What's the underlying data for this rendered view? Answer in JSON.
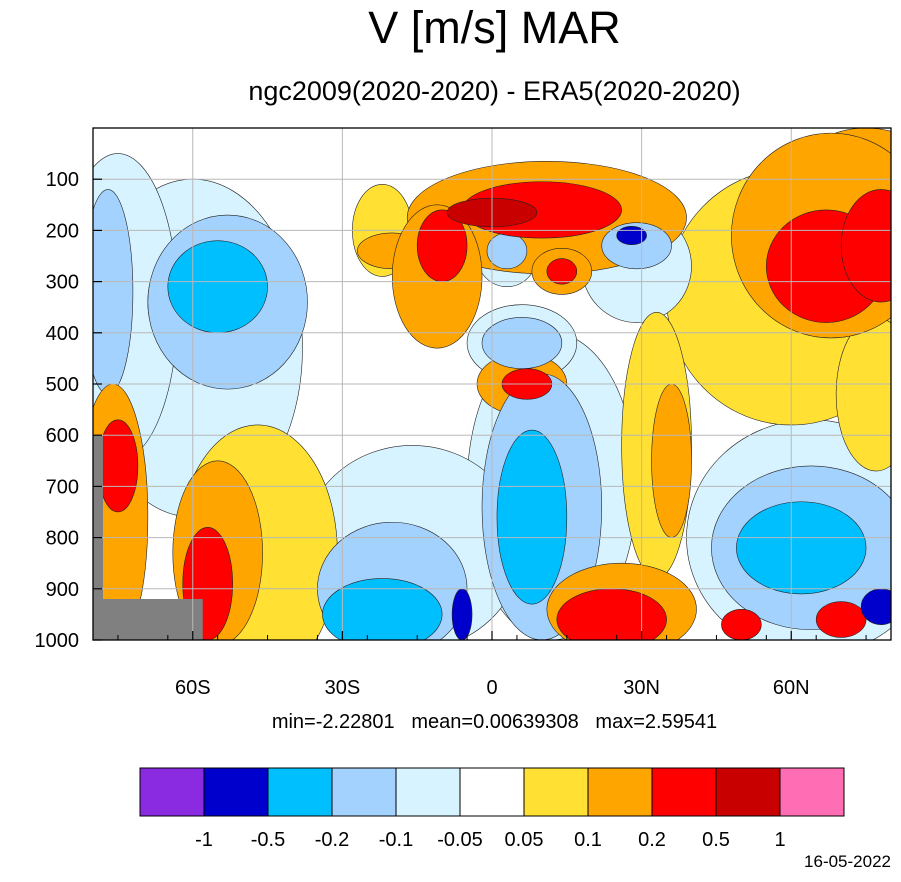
{
  "title": "V [m/s] MAR",
  "subtitle": "ngc2009(2020-2020) - ERA5(2020-2020)",
  "stats": {
    "min_label": "min=-2.22801",
    "mean_label": "mean=0.00639308",
    "max_label": "max=2.59541"
  },
  "date": "16-05-2022",
  "chart_data": {
    "type": "heatmap",
    "x_range": [
      -80,
      80
    ],
    "y_range": [
      0,
      1000
    ],
    "y_inverted": true,
    "grid": true,
    "x_ticks": [
      {
        "value": -60,
        "label": "60S"
      },
      {
        "value": -30,
        "label": "30S"
      },
      {
        "value": 0,
        "label": "0"
      },
      {
        "value": 30,
        "label": "30N"
      },
      {
        "value": 60,
        "label": "60N"
      }
    ],
    "y_ticks": [
      100,
      200,
      300,
      400,
      500,
      600,
      700,
      800,
      900,
      1000
    ],
    "colorbar": {
      "colors": [
        "#8a2be2",
        "#0000cd",
        "#00bfff",
        "#a4d2ff",
        "#d6f3ff",
        "#ffffff",
        "#ffe033",
        "#ffa500",
        "#ff0000",
        "#c80000",
        "#ff6eb4"
      ],
      "labels": [
        "-1",
        "-0.5",
        "-0.2",
        "-0.1",
        "-0.05",
        "0.05",
        "0.1",
        "0.2",
        "0.5",
        "1"
      ]
    },
    "features": [
      {
        "lat": 0,
        "lev": 165,
        "rlat": 9,
        "rlev": 28,
        "value": 0.6
      },
      {
        "lat": 10,
        "lev": 160,
        "rlat": 16,
        "rlev": 55,
        "value": 0.3
      },
      {
        "lat": 11,
        "lev": 175,
        "rlat": 28,
        "rlev": 110,
        "value": 0.12
      },
      {
        "lat": -10,
        "lev": 230,
        "rlat": 5,
        "rlev": 70,
        "value": 0.3
      },
      {
        "lat": -11,
        "lev": 290,
        "rlat": 9,
        "rlev": 140,
        "value": 0.15
      },
      {
        "lat": -22,
        "lev": 200,
        "rlat": 6,
        "rlev": 90,
        "value": 0.07
      },
      {
        "lat": -20,
        "lev": 240,
        "rlat": 7,
        "rlev": 35,
        "value": 0.12
      },
      {
        "lat": 67,
        "lev": 270,
        "rlat": 12,
        "rlev": 110,
        "value": 0.3
      },
      {
        "lat": 78,
        "lev": 230,
        "rlat": 8,
        "rlev": 110,
        "value": 0.3
      },
      {
        "lat": 68,
        "lev": 210,
        "rlat": 20,
        "rlev": 200,
        "value": 0.15
      },
      {
        "lat": 75,
        "lev": 130,
        "rlat": 16,
        "rlev": 130,
        "value": 0.12
      },
      {
        "lat": 60,
        "lev": 330,
        "rlat": 25,
        "rlev": 250,
        "value": 0.07
      },
      {
        "lat": 77,
        "lev": 520,
        "rlat": 8,
        "rlev": 150,
        "value": 0.07
      },
      {
        "lat": 29,
        "lev": 230,
        "rlat": 7,
        "rlev": 45,
        "value": -0.15
      },
      {
        "lat": 28,
        "lev": 210,
        "rlat": 3,
        "rlev": 18,
        "value": -0.6
      },
      {
        "lat": 29,
        "lev": 270,
        "rlat": 11,
        "rlev": 110,
        "value": -0.07
      },
      {
        "lat": 7,
        "lev": 500,
        "rlat": 5,
        "rlev": 30,
        "value": 0.3
      },
      {
        "lat": 6,
        "lev": 500,
        "rlat": 9,
        "rlev": 60,
        "value": 0.12
      },
      {
        "lat": 6,
        "lev": 420,
        "rlat": 8,
        "rlev": 50,
        "value": -0.15
      },
      {
        "lat": 6,
        "lev": 420,
        "rlat": 11,
        "rlev": 75,
        "value": -0.07
      },
      {
        "lat": 3,
        "lev": 240,
        "rlat": 4,
        "rlev": 35,
        "value": -0.15
      },
      {
        "lat": 3,
        "lev": 250,
        "rlat": 6,
        "rlev": 60,
        "value": -0.07
      },
      {
        "lat": 14,
        "lev": 280,
        "rlat": 3,
        "rlev": 25,
        "value": 0.3
      },
      {
        "lat": 14,
        "lev": 280,
        "rlat": 6,
        "rlev": 45,
        "value": 0.12
      },
      {
        "lat": -55,
        "lev": 310,
        "rlat": 10,
        "rlev": 90,
        "value": -0.3
      },
      {
        "lat": -53,
        "lev": 340,
        "rlat": 16,
        "rlev": 170,
        "value": -0.13
      },
      {
        "lat": -60,
        "lev": 430,
        "rlat": 22,
        "rlev": 330,
        "value": -0.06
      },
      {
        "lat": -77,
        "lev": 320,
        "rlat": 5,
        "rlev": 200,
        "value": -0.13
      },
      {
        "lat": -75,
        "lev": 350,
        "rlat": 12,
        "rlev": 300,
        "value": -0.06
      },
      {
        "lat": -65,
        "lev": 340,
        "rlat": 4,
        "rlev": 80,
        "value": 0.07
      },
      {
        "lat": 62,
        "lev": 820,
        "rlat": 13,
        "rlev": 90,
        "value": -0.3
      },
      {
        "lat": 64,
        "lev": 820,
        "rlat": 20,
        "rlev": 160,
        "value": -0.13
      },
      {
        "lat": 64,
        "lev": 800,
        "rlat": 25,
        "rlev": 230,
        "value": -0.06
      },
      {
        "lat": 78,
        "lev": 935,
        "rlat": 4,
        "rlev": 35,
        "value": -0.6
      },
      {
        "lat": 70,
        "lev": 960,
        "rlat": 5,
        "rlev": 35,
        "value": 0.3
      },
      {
        "lat": 8,
        "lev": 760,
        "rlat": 7,
        "rlev": 170,
        "value": -0.3
      },
      {
        "lat": 10,
        "lev": 740,
        "rlat": 12,
        "rlev": 260,
        "value": -0.13
      },
      {
        "lat": 12,
        "lev": 700,
        "rlat": 17,
        "rlev": 300,
        "value": -0.06
      },
      {
        "lat": 24,
        "lev": 960,
        "rlat": 11,
        "rlev": 60,
        "value": 0.3
      },
      {
        "lat": 26,
        "lev": 940,
        "rlat": 15,
        "rlev": 90,
        "value": 0.15
      },
      {
        "lat": 36,
        "lev": 650,
        "rlat": 4,
        "rlev": 150,
        "value": 0.12
      },
      {
        "lat": 33,
        "lev": 620,
        "rlat": 7,
        "rlev": 260,
        "value": 0.07
      },
      {
        "lat": -22,
        "lev": 950,
        "rlat": 12,
        "rlev": 70,
        "value": -0.3
      },
      {
        "lat": -20,
        "lev": 900,
        "rlat": 15,
        "rlev": 130,
        "value": -0.13
      },
      {
        "lat": -16,
        "lev": 820,
        "rlat": 22,
        "rlev": 200,
        "value": -0.06
      },
      {
        "lat": -57,
        "lev": 890,
        "rlat": 5,
        "rlev": 110,
        "value": 0.3
      },
      {
        "lat": -55,
        "lev": 830,
        "rlat": 9,
        "rlev": 180,
        "value": 0.15
      },
      {
        "lat": -47,
        "lev": 830,
        "rlat": 16,
        "rlev": 250,
        "value": 0.07
      },
      {
        "lat": -75,
        "lev": 660,
        "rlat": 4,
        "rlev": 90,
        "value": 0.3
      },
      {
        "lat": -76,
        "lev": 760,
        "rlat": 7,
        "rlev": 260,
        "value": 0.15
      },
      {
        "lat": -6,
        "lev": 950,
        "rlat": 2,
        "rlev": 50,
        "value": -0.6
      },
      {
        "lat": 50,
        "lev": 970,
        "rlat": 4,
        "rlev": 30,
        "value": 0.3
      }
    ]
  }
}
